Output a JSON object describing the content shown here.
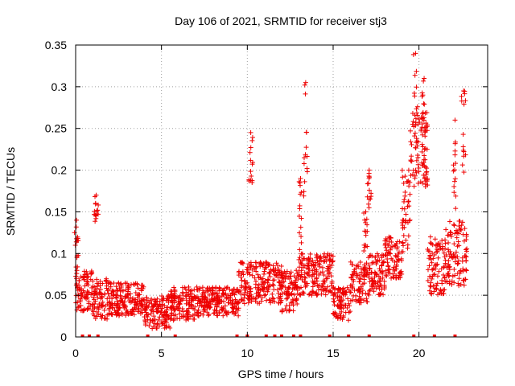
{
  "chart_data": {
    "type": "scatter",
    "title": "Day 106 of 2021, SRMTID for receiver stj3",
    "xlabel": "GPS time / hours",
    "ylabel": "SRMTID / TECUs",
    "xlim": [
      0,
      24
    ],
    "ylim": [
      0,
      0.35
    ],
    "x_ticks": [
      0,
      5,
      10,
      15,
      20
    ],
    "y_ticks": [
      0,
      0.05,
      0.1,
      0.15,
      0.2,
      0.25,
      0.3,
      0.35
    ],
    "x_tick_labels": [
      "0",
      "5",
      "10",
      "15",
      "20"
    ],
    "y_tick_labels": [
      "0",
      "0.05",
      "0.1",
      "0.15",
      "0.2",
      "0.25",
      "0.3",
      "0.35"
    ],
    "grid": true,
    "marker": "+",
    "color": "#ee0000",
    "series": [
      {
        "name": "SRMTID",
        "segments": [
          {
            "x0": 0.0,
            "x1": 1.0,
            "lo": 0.03,
            "hi": 0.08
          },
          {
            "x0": 1.0,
            "x1": 2.0,
            "lo": 0.02,
            "hi": 0.07
          },
          {
            "x0": 2.0,
            "x1": 4.0,
            "lo": 0.025,
            "hi": 0.065
          },
          {
            "x0": 4.0,
            "x1": 5.5,
            "lo": 0.01,
            "hi": 0.05
          },
          {
            "x0": 5.5,
            "x1": 7.0,
            "lo": 0.02,
            "hi": 0.06
          },
          {
            "x0": 7.0,
            "x1": 9.5,
            "lo": 0.025,
            "hi": 0.06
          },
          {
            "x0": 9.5,
            "x1": 12.0,
            "lo": 0.04,
            "hi": 0.09
          },
          {
            "x0": 12.0,
            "x1": 13.0,
            "lo": 0.03,
            "hi": 0.08
          },
          {
            "x0": 13.0,
            "x1": 14.0,
            "lo": 0.05,
            "hi": 0.1
          },
          {
            "x0": 14.0,
            "x1": 15.0,
            "lo": 0.05,
            "hi": 0.1
          },
          {
            "x0": 15.0,
            "x1": 16.0,
            "lo": 0.02,
            "hi": 0.06
          },
          {
            "x0": 16.0,
            "x1": 17.0,
            "lo": 0.04,
            "hi": 0.09
          },
          {
            "x0": 17.0,
            "x1": 18.0,
            "lo": 0.05,
            "hi": 0.1
          },
          {
            "x0": 18.0,
            "x1": 19.0,
            "lo": 0.07,
            "hi": 0.12
          },
          {
            "x0": 19.0,
            "x1": 19.5,
            "lo": 0.1,
            "hi": 0.2
          },
          {
            "x0": 19.5,
            "x1": 20.5,
            "lo": 0.18,
            "hi": 0.27
          },
          {
            "x0": 20.5,
            "x1": 21.5,
            "lo": 0.05,
            "hi": 0.12
          },
          {
            "x0": 21.5,
            "x1": 22.8,
            "lo": 0.06,
            "hi": 0.14
          }
        ],
        "spikes": [
          {
            "x": 0.05,
            "lo": 0.08,
            "hi": 0.14
          },
          {
            "x": 1.2,
            "lo": 0.13,
            "hi": 0.17
          },
          {
            "x": 10.2,
            "lo": 0.18,
            "hi": 0.245
          },
          {
            "x": 13.4,
            "lo": 0.15,
            "hi": 0.305
          },
          {
            "x": 13.1,
            "lo": 0.1,
            "hi": 0.19
          },
          {
            "x": 16.9,
            "lo": 0.1,
            "hi": 0.15
          },
          {
            "x": 17.1,
            "lo": 0.15,
            "hi": 0.2
          },
          {
            "x": 19.8,
            "lo": 0.22,
            "hi": 0.34
          },
          {
            "x": 20.3,
            "lo": 0.22,
            "hi": 0.31
          },
          {
            "x": 22.1,
            "lo": 0.15,
            "hi": 0.26
          },
          {
            "x": 22.6,
            "lo": 0.18,
            "hi": 0.295
          }
        ],
        "zero_points": [
          0.4,
          0.8,
          1.3,
          4.2,
          5.8,
          9.4,
          10.0,
          11.1,
          11.6,
          12.0,
          12.7,
          13.1,
          14.8,
          15.9,
          17.1,
          19.7,
          20.9,
          22.1
        ]
      }
    ]
  }
}
